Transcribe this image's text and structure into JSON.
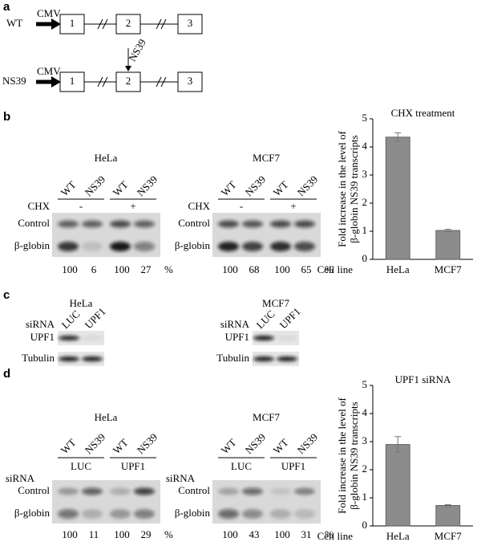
{
  "panel_a": {
    "label": "a",
    "mutation_label": "NS39",
    "constructs": [
      {
        "name": "WT",
        "promoter": "CMV",
        "exons": [
          "1",
          "2",
          "3"
        ]
      },
      {
        "name": "NS39",
        "promoter": "CMV",
        "exons": [
          "1",
          "2",
          "3"
        ]
      }
    ]
  },
  "panel_b": {
    "label": "b",
    "blots": [
      {
        "cell_line": "HeLa",
        "lanes": [
          "WT",
          "NS39",
          "WT",
          "NS39"
        ],
        "treatment": "CHX",
        "conditions": [
          "-",
          "+"
        ],
        "rows": [
          "Control",
          "β-globin"
        ],
        "quantification": [
          100,
          6,
          100,
          27
        ],
        "unit": "%"
      },
      {
        "cell_line": "MCF7",
        "lanes": [
          "WT",
          "NS39",
          "WT",
          "NS39"
        ],
        "treatment": "CHX",
        "conditions": [
          "-",
          "+"
        ],
        "rows": [
          "Control",
          "β-globin"
        ],
        "quantification": [
          100,
          68,
          100,
          65
        ],
        "unit": "%"
      }
    ]
  },
  "panel_c": {
    "label": "c",
    "blots": [
      {
        "cell_line": "HeLa",
        "treatment": "siRNA",
        "lanes": [
          "LUC",
          "UPF1"
        ],
        "rows": [
          "UPF1",
          "Tubulin"
        ]
      },
      {
        "cell_line": "MCF7",
        "treatment": "siRNA",
        "lanes": [
          "LUC",
          "UPF1"
        ],
        "rows": [
          "UPF1",
          "Tubulin"
        ]
      }
    ]
  },
  "panel_d": {
    "label": "d",
    "blots": [
      {
        "cell_line": "HeLa",
        "lanes": [
          "WT",
          "NS39",
          "WT",
          "NS39"
        ],
        "treatment": "siRNA",
        "conditions": [
          "LUC",
          "UPF1"
        ],
        "rows": [
          "Control",
          "β-globin"
        ],
        "quantification": [
          100,
          11,
          100,
          29
        ],
        "unit": "%"
      },
      {
        "cell_line": "MCF7",
        "lanes": [
          "WT",
          "NS39",
          "WT",
          "NS39"
        ],
        "treatment": "siRNA",
        "conditions": [
          "LUC",
          "UPF1"
        ],
        "rows": [
          "Control",
          "β-globin"
        ],
        "quantification": [
          100,
          43,
          100,
          31
        ],
        "unit": "%"
      }
    ]
  },
  "chart_data": [
    {
      "type": "bar",
      "title": "CHX treatment",
      "ylabel": [
        "Fold increase in the level of",
        "β-globin NS39 transcripts"
      ],
      "xlabel": "Cell line",
      "categories": [
        "HeLa",
        "MCF7"
      ],
      "values": [
        4.35,
        1.03
      ],
      "errors": [
        0.15,
        0.04
      ],
      "color": "#8c8c8c",
      "ylim": [
        0,
        5
      ],
      "yticks": [
        0,
        1,
        2,
        3,
        4,
        5
      ]
    },
    {
      "type": "bar",
      "title": "UPF1 siRNA",
      "ylabel": [
        "Fold increase in the level of",
        "β-globin NS39 transcripts"
      ],
      "xlabel": "Cell line",
      "categories": [
        "HeLa",
        "MCF7"
      ],
      "values": [
        2.9,
        0.73
      ],
      "errors": [
        0.28,
        0.03
      ],
      "color": "#8c8c8c",
      "ylim": [
        0,
        5
      ],
      "yticks": [
        0,
        1,
        2,
        3,
        4,
        5
      ]
    }
  ]
}
